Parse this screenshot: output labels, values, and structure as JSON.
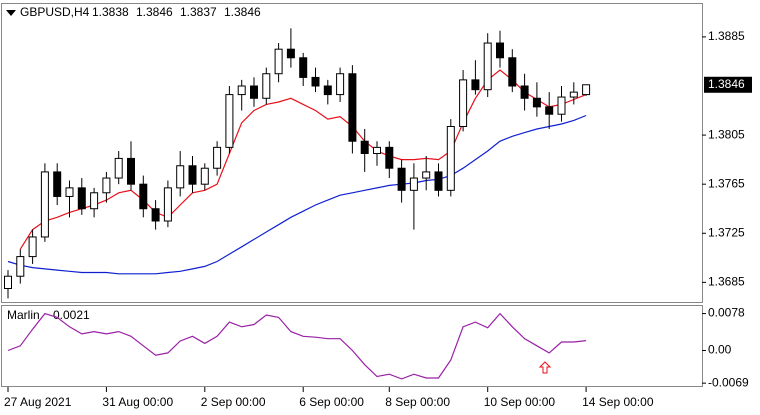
{
  "chart_data": [
    {
      "type": "candlestick",
      "symbol": "GBPUSD,H4",
      "categories": [
        "27 Aug 2021",
        null,
        null,
        null,
        null,
        null,
        null,
        null,
        "31 Aug 00:00",
        null,
        null,
        null,
        null,
        null,
        null,
        null,
        "2 Sep 00:00",
        null,
        null,
        null,
        null,
        null,
        null,
        null,
        "6 Sep 00:00",
        null,
        null,
        null,
        null,
        null,
        null,
        "8 Sep 00:00",
        null,
        null,
        null,
        null,
        null,
        null,
        null,
        "10 Sep 00:00",
        null,
        null,
        null,
        null,
        null,
        null,
        null,
        "14 Sep 00:00"
      ],
      "open": [
        1.368,
        1.369,
        1.3706,
        1.3722,
        1.3775,
        1.3755,
        1.3762,
        1.3745,
        1.3758,
        1.377,
        1.3786,
        1.3765,
        1.3745,
        1.3735,
        1.3762,
        1.378,
        1.3765,
        1.3778,
        1.3795,
        1.3838,
        1.3845,
        1.3835,
        1.3855,
        1.3875,
        1.3868,
        1.3852,
        1.3845,
        1.3838,
        1.3855,
        1.38,
        1.379,
        1.3795,
        1.3778,
        1.376,
        1.377,
        1.3775,
        1.376,
        1.3812,
        1.385,
        1.3842,
        1.388,
        1.3868,
        1.3845,
        1.3835,
        1.3828,
        1.3822,
        1.3836,
        1.3838
      ],
      "high": [
        1.3695,
        1.3712,
        1.3728,
        1.3782,
        1.3782,
        1.3768,
        1.377,
        1.3762,
        1.3775,
        1.3792,
        1.38,
        1.3772,
        1.3752,
        1.3768,
        1.3792,
        1.3788,
        1.3782,
        1.38,
        1.3845,
        1.385,
        1.3852,
        1.386,
        1.388,
        1.3892,
        1.3872,
        1.386,
        1.385,
        1.386,
        1.3862,
        1.381,
        1.38,
        1.38,
        1.3785,
        1.3782,
        1.3788,
        1.3782,
        1.3818,
        1.3858,
        1.3866,
        1.3888,
        1.389,
        1.3875,
        1.3855,
        1.3848,
        1.384,
        1.3845,
        1.3848,
        1.3846
      ],
      "low": [
        1.3672,
        1.3684,
        1.37,
        1.3718,
        1.3748,
        1.3738,
        1.374,
        1.3738,
        1.375,
        1.3765,
        1.376,
        1.3738,
        1.3728,
        1.373,
        1.3755,
        1.3758,
        1.376,
        1.3772,
        1.379,
        1.3825,
        1.3828,
        1.383,
        1.3848,
        1.386,
        1.3845,
        1.384,
        1.383,
        1.3832,
        1.379,
        1.3775,
        1.378,
        1.377,
        1.375,
        1.3728,
        1.376,
        1.3755,
        1.3755,
        1.3808,
        1.3838,
        1.3836,
        1.386,
        1.384,
        1.3825,
        1.382,
        1.381,
        1.3816,
        1.383,
        1.3837
      ],
      "close": [
        1.369,
        1.3706,
        1.3722,
        1.3775,
        1.3755,
        1.3762,
        1.3745,
        1.3758,
        1.377,
        1.3786,
        1.3765,
        1.3745,
        1.3735,
        1.3762,
        1.378,
        1.3765,
        1.3778,
        1.3795,
        1.3838,
        1.3845,
        1.3835,
        1.3855,
        1.3875,
        1.3868,
        1.3852,
        1.3845,
        1.3838,
        1.3855,
        1.38,
        1.379,
        1.3795,
        1.3778,
        1.376,
        1.377,
        1.3775,
        1.376,
        1.3812,
        1.385,
        1.3842,
        1.388,
        1.3868,
        1.3845,
        1.3835,
        1.3828,
        1.3822,
        1.3836,
        1.384,
        1.3846
      ],
      "series": [
        {
          "color": "#e8101a",
          "values": [
            null,
            1.3712,
            1.3728,
            1.3735,
            1.3738,
            1.3742,
            1.3745,
            1.3748,
            1.3752,
            1.3758,
            1.376,
            1.3752,
            1.3742,
            1.3738,
            1.3748,
            1.3758,
            1.376,
            1.3765,
            1.379,
            1.3815,
            1.3825,
            1.383,
            1.3832,
            1.3835,
            1.383,
            1.3825,
            1.3818,
            1.382,
            1.3812,
            1.38,
            1.3792,
            1.3788,
            1.3785,
            1.3785,
            1.3786,
            1.3785,
            1.3792,
            1.3815,
            1.3835,
            1.385,
            1.3858,
            1.385,
            1.384,
            1.3834,
            1.3828,
            1.383,
            1.3834,
            1.3838
          ]
        },
        {
          "color": "#1020d0",
          "values": [
            1.3702,
            1.3699,
            1.3697,
            1.3696,
            1.3695,
            1.3694,
            1.3693,
            1.3693,
            1.3693,
            1.3692,
            1.3692,
            1.3692,
            1.3692,
            1.3693,
            1.3694,
            1.3696,
            1.3698,
            1.3702,
            1.3708,
            1.3714,
            1.372,
            1.3726,
            1.3732,
            1.3738,
            1.3743,
            1.3748,
            1.3752,
            1.3756,
            1.3758,
            1.376,
            1.3762,
            1.3764,
            1.3765,
            1.3766,
            1.3768,
            1.3769,
            1.3772,
            1.3778,
            1.3785,
            1.3792,
            1.38,
            1.3804,
            1.3807,
            1.381,
            1.3812,
            1.3814,
            1.3817,
            1.3821
          ]
        }
      ],
      "ylim": [
        1.3669,
        1.3911
      ],
      "yticks": [
        1.3885,
        1.3805,
        1.3765,
        1.3725,
        1.3685
      ],
      "grid": false
    },
    {
      "type": "line",
      "title": "Marlin",
      "series": [
        {
          "color": "#9a1fa6",
          "values": [
            0.0,
            0.001,
            0.0045,
            0.0078,
            0.007,
            0.005,
            0.0035,
            0.004,
            0.0035,
            0.004,
            0.003,
            0.001,
            -0.001,
            -0.0005,
            0.002,
            0.003,
            0.0015,
            0.003,
            0.006,
            0.005,
            0.0055,
            0.0075,
            0.007,
            0.004,
            0.003,
            0.0028,
            0.0025,
            0.0025,
            0.0,
            -0.003,
            -0.0055,
            -0.005,
            -0.006,
            -0.005,
            -0.0058,
            -0.0058,
            -0.002,
            0.005,
            0.006,
            0.0048,
            0.0078,
            0.005,
            0.0025,
            0.001,
            -0.0005,
            0.0018,
            0.0018,
            0.0021
          ]
        }
      ],
      "ylim": [
        -0.0075,
        0.0094
      ],
      "yticks": [
        0.0078,
        {
          "value": 0,
          "label": "0.00"
        },
        -0.0069
      ],
      "grid": false
    }
  ]
}
